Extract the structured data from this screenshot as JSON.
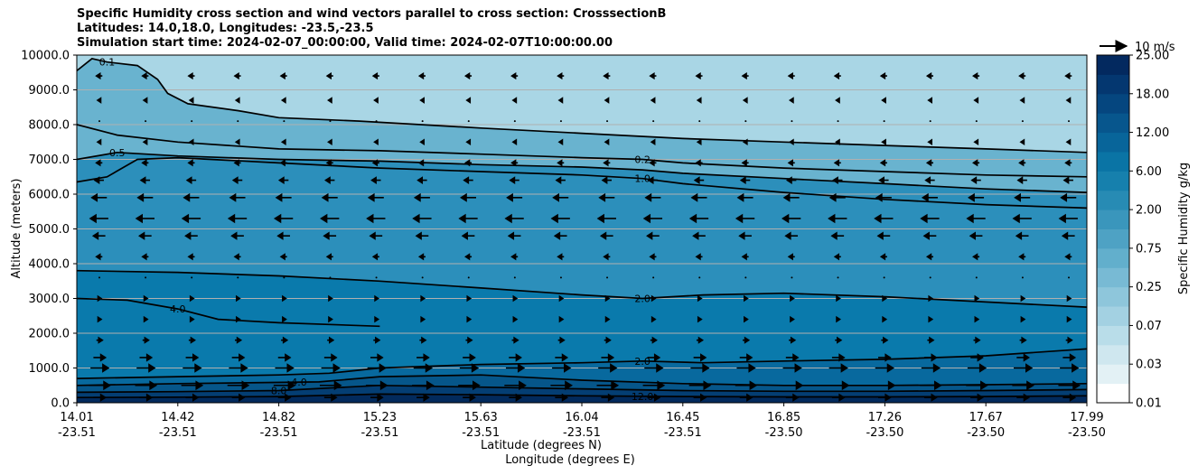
{
  "title_lines": [
    "Specific Humidity cross section and wind vectors parallel to cross section: CrosssectionB",
    "Latitudes: 14.0,18.0, Longitudes: -23.5,-23.5",
    "Simulation start time: 2024-02-07_00:00:00, Valid time: 2024-02-07T10:00:00.00"
  ],
  "chart_data": {
    "type": "heatmap",
    "title": "Specific Humidity cross section and wind vectors parallel to cross section: CrosssectionB",
    "ylabel": "Altitude (meters)",
    "xlabel_lines": [
      "Latitude (degrees N)",
      "Longitude (degrees E)"
    ],
    "ylim": [
      0,
      10000
    ],
    "y_ticks": [
      0,
      1000,
      2000,
      3000,
      4000,
      5000,
      6000,
      7000,
      8000,
      9000,
      10000
    ],
    "y_tick_labels": [
      "0.0",
      "1000.0",
      "2000.0",
      "3000.0",
      "4000.0",
      "5000.0",
      "6000.0",
      "7000.0",
      "8000.0",
      "9000.0",
      "10000.0"
    ],
    "x_ticks": [
      {
        "lat": "14.01",
        "lon": "-23.51"
      },
      {
        "lat": "14.42",
        "lon": "-23.51"
      },
      {
        "lat": "14.82",
        "lon": "-23.51"
      },
      {
        "lat": "15.23",
        "lon": "-23.51"
      },
      {
        "lat": "15.63",
        "lon": "-23.51"
      },
      {
        "lat": "16.04",
        "lon": "-23.51"
      },
      {
        "lat": "16.45",
        "lon": "-23.51"
      },
      {
        "lat": "16.85",
        "lon": "-23.50"
      },
      {
        "lat": "17.26",
        "lon": "-23.50"
      },
      {
        "lat": "17.67",
        "lon": "-23.50"
      },
      {
        "lat": "17.99",
        "lon": "-23.50"
      }
    ],
    "grid": "horizontal",
    "colorbar": {
      "label": "Specific Humidity g/kg",
      "ticks": [
        "0.01",
        "0.03",
        "0.07",
        "0.25",
        "0.75",
        "2.00",
        "6.00",
        "12.00",
        "18.00",
        "25.00"
      ],
      "levels": [
        0.01,
        0.02,
        0.03,
        0.05,
        0.07,
        0.1,
        0.25,
        0.5,
        0.75,
        1.0,
        2.0,
        4.0,
        6.0,
        8.0,
        12.0,
        15.0,
        18.0,
        20.0,
        25.0
      ]
    },
    "wind_key": "10 m/s",
    "contours": [
      {
        "level": 0.1,
        "label": "0.1",
        "points": [
          [
            0.0,
            9550
          ],
          [
            1.5,
            9900
          ],
          [
            3.0,
            9800
          ],
          [
            6.0,
            9700
          ],
          [
            8.0,
            9300
          ],
          [
            9.0,
            8900
          ],
          [
            11.0,
            8600
          ],
          [
            16.0,
            8400
          ],
          [
            20.0,
            8200
          ],
          [
            28.0,
            8100
          ],
          [
            40.0,
            7900
          ],
          [
            50.0,
            7750
          ],
          [
            60.0,
            7600
          ],
          [
            70.0,
            7500
          ],
          [
            80.0,
            7400
          ],
          [
            90.0,
            7300
          ],
          [
            100.0,
            7200
          ]
        ]
      },
      {
        "level": 0.2,
        "label": "0.2",
        "points": [
          [
            0.0,
            8000
          ],
          [
            4.0,
            7700
          ],
          [
            10.0,
            7500
          ],
          [
            20.0,
            7300
          ],
          [
            30.0,
            7250
          ],
          [
            40.0,
            7150
          ],
          [
            50.0,
            7050
          ],
          [
            56.0,
            7000
          ],
          [
            60.0,
            6900
          ],
          [
            70.0,
            6750
          ],
          [
            80.0,
            6650
          ],
          [
            90.0,
            6550
          ],
          [
            100.0,
            6500
          ]
        ]
      },
      {
        "level": 0.5,
        "label": "0.5",
        "points": [
          [
            0.0,
            7000
          ],
          [
            4.0,
            7200
          ],
          [
            10.0,
            7100
          ],
          [
            20.0,
            7000
          ],
          [
            30.0,
            6950
          ],
          [
            40.0,
            6850
          ],
          [
            50.0,
            6780
          ],
          [
            56.0,
            6700
          ],
          [
            60.0,
            6600
          ],
          [
            70.0,
            6450
          ],
          [
            80.0,
            6300
          ],
          [
            90.0,
            6150
          ],
          [
            100.0,
            6050
          ]
        ]
      },
      {
        "level": 1.0,
        "label": "1.0",
        "points": [
          [
            0.0,
            6350
          ],
          [
            3.0,
            6500
          ],
          [
            6.0,
            7000
          ],
          [
            10.0,
            7050
          ],
          [
            20.0,
            6900
          ],
          [
            30.0,
            6750
          ],
          [
            40.0,
            6650
          ],
          [
            50.0,
            6550
          ],
          [
            56.0,
            6450
          ],
          [
            60.0,
            6300
          ],
          [
            70.0,
            6050
          ],
          [
            80.0,
            5850
          ],
          [
            90.0,
            5700
          ],
          [
            100.0,
            5600
          ]
        ]
      },
      {
        "level": 2.0,
        "label": "2.0",
        "points": [
          [
            0.0,
            3800
          ],
          [
            10.0,
            3750
          ],
          [
            20.0,
            3650
          ],
          [
            30.0,
            3500
          ],
          [
            40.0,
            3300
          ],
          [
            50.0,
            3100
          ],
          [
            56.0,
            3000
          ],
          [
            62.0,
            3100
          ],
          [
            70.0,
            3150
          ],
          [
            80.0,
            3050
          ],
          [
            90.0,
            2900
          ],
          [
            100.0,
            2750
          ]
        ]
      },
      {
        "level": 4.0,
        "label": "4.0",
        "points": [
          [
            0.0,
            3000
          ],
          [
            5.0,
            2950
          ],
          [
            10.0,
            2700
          ],
          [
            14.0,
            2400
          ],
          [
            20.0,
            2300
          ],
          [
            30.0,
            2200
          ]
        ]
      },
      {
        "level": 2.0,
        "label": "2.0",
        "points": [
          [
            0.0,
            700
          ],
          [
            10.0,
            750
          ],
          [
            20.0,
            800
          ],
          [
            25.0,
            850
          ],
          [
            30.0,
            1000
          ],
          [
            40.0,
            1100
          ],
          [
            50.0,
            1150
          ],
          [
            56.0,
            1200
          ],
          [
            62.0,
            1150
          ],
          [
            70.0,
            1200
          ],
          [
            80.0,
            1250
          ],
          [
            90.0,
            1350
          ],
          [
            100.0,
            1550
          ]
        ]
      },
      {
        "level": 4.0,
        "label": "4.0",
        "points": [
          [
            0.0,
            500
          ],
          [
            10.0,
            550
          ],
          [
            24.0,
            600
          ],
          [
            30.0,
            750
          ],
          [
            40.0,
            800
          ],
          [
            50.0,
            650
          ],
          [
            60.0,
            550
          ],
          [
            70.0,
            500
          ],
          [
            80.0,
            500
          ],
          [
            90.0,
            520
          ],
          [
            100.0,
            550
          ]
        ]
      },
      {
        "level": 8.0,
        "label": "8.0",
        "points": [
          [
            0.0,
            300
          ],
          [
            10.0,
            320
          ],
          [
            20.0,
            350
          ],
          [
            30.0,
            500
          ],
          [
            40.0,
            450
          ],
          [
            50.0,
            400
          ],
          [
            60.0,
            350
          ],
          [
            70.0,
            330
          ],
          [
            80.0,
            330
          ],
          [
            90.0,
            350
          ],
          [
            100.0,
            380
          ]
        ]
      },
      {
        "level": 12.0,
        "label": "12.0",
        "points": [
          [
            0.0,
            150
          ],
          [
            10.0,
            160
          ],
          [
            20.0,
            180
          ],
          [
            30.0,
            250
          ],
          [
            40.0,
            230
          ],
          [
            50.0,
            200
          ],
          [
            60.0,
            180
          ],
          [
            70.0,
            170
          ],
          [
            80.0,
            170
          ],
          [
            90.0,
            180
          ],
          [
            100.0,
            200
          ]
        ]
      }
    ],
    "wind_vectors": [
      {
        "z": 9400,
        "u": -2
      },
      {
        "z": 8700,
        "u": -1
      },
      {
        "z": 8100,
        "u": 0
      },
      {
        "z": 7500,
        "u": -1
      },
      {
        "z": 6900,
        "u": -2
      },
      {
        "z": 6400,
        "u": -3
      },
      {
        "z": 5900,
        "u": -5
      },
      {
        "z": 5300,
        "u": -6
      },
      {
        "z": 4800,
        "u": -4
      },
      {
        "z": 4200,
        "u": -2
      },
      {
        "z": 3600,
        "u": 0
      },
      {
        "z": 3000,
        "u": 1
      },
      {
        "z": 2400,
        "u": 1
      },
      {
        "z": 1800,
        "u": 2
      },
      {
        "z": 1300,
        "u": 4
      },
      {
        "z": 1000,
        "u": 6
      },
      {
        "z": 500,
        "u": 7
      },
      {
        "z": 150,
        "u": 4
      }
    ]
  }
}
